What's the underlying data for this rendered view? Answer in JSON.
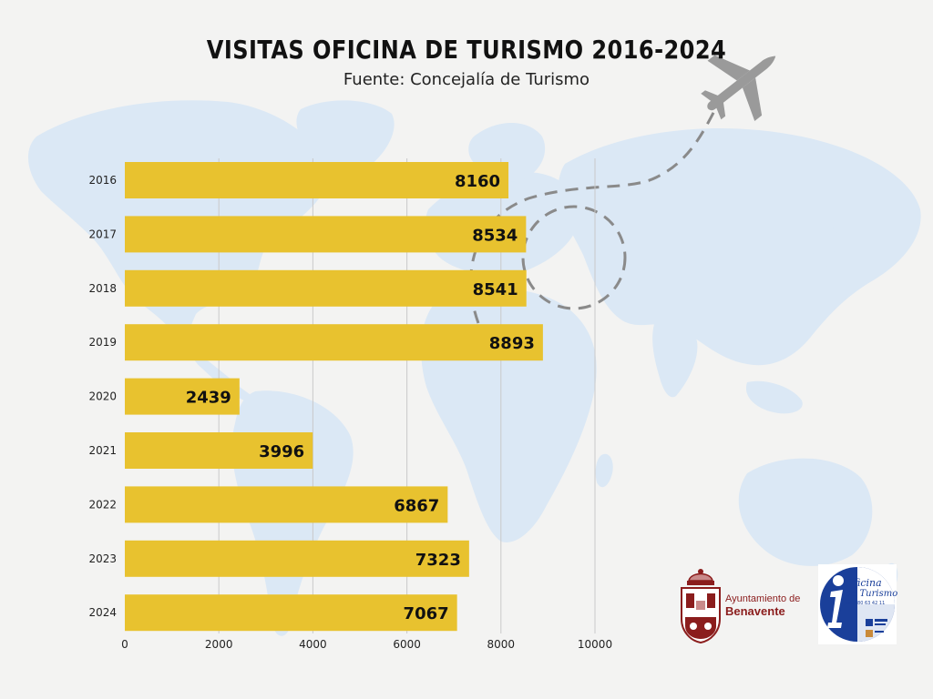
{
  "chart_data": {
    "type": "bar",
    "orientation": "horizontal",
    "title": "VISITAS OFICINA DE TURISMO 2016-2024",
    "subtitle": "Fuente: Concejalía de Turismo",
    "categories": [
      "2016",
      "2017",
      "2018",
      "2019",
      "2020",
      "2021",
      "2022",
      "2023",
      "2024"
    ],
    "values": [
      8160,
      8534,
      8541,
      8893,
      2439,
      3996,
      6867,
      7323,
      7067
    ],
    "xticks": [
      0,
      2000,
      4000,
      6000,
      8000,
      10000
    ],
    "xlim": [
      0,
      10000
    ],
    "grid": true,
    "bar_color": "#e8c22f",
    "grid_color": "#c9c9c9"
  },
  "logos": {
    "ayuntamiento_line1": "Ayuntamiento de",
    "ayuntamiento_line2": "Benavente",
    "oficina_line1": "Oficina",
    "oficina_line2": "de Turismo",
    "oficina_phone": "Tel. 980 63 42 11"
  },
  "colors": {
    "background": "#f3f3f2",
    "map": "#dbe8f5",
    "plane": "#9a9a9a"
  }
}
